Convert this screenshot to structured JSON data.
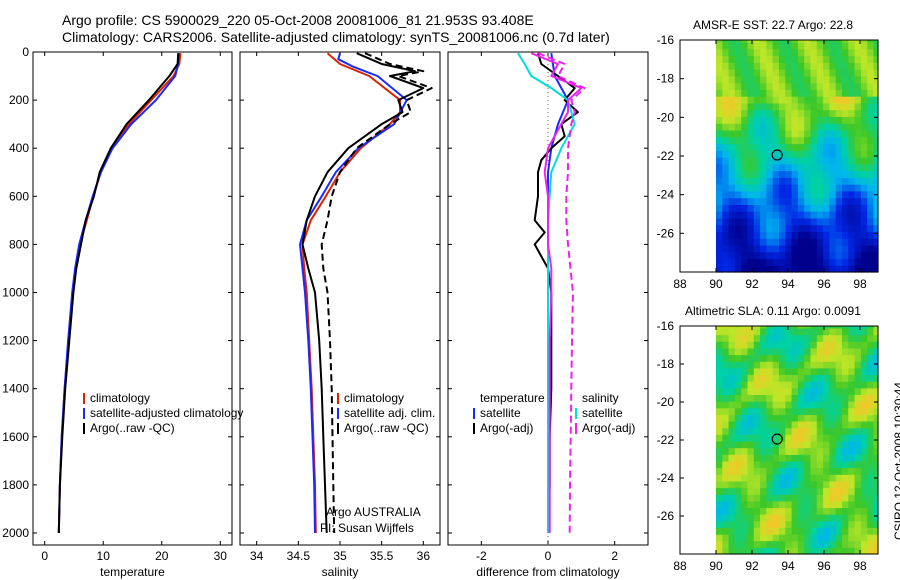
{
  "header": {
    "title_line1": "Argo profile: CS 5900029_220 05-Oct-2008 20081006_81 21.953S 93.408E",
    "title_line2": "Climatology: CARS2006. Satellite-adjusted climatology: synTS_20081006.nc (0.7d later)"
  },
  "timestamp": "CSIRO 12-Oct-2008 10:30:44",
  "colors": {
    "red": "#dd2200",
    "blue": "#1a2aff",
    "black": "#000000",
    "cyan": "#00dddd",
    "magenta": "#ee22ee"
  },
  "chart_data": [
    {
      "id": "temperature",
      "type": "line",
      "xlabel": "temperature",
      "xlim": [
        -2,
        32
      ],
      "ylim": [
        0,
        2050
      ],
      "y_inverted": true,
      "xticks": [
        0,
        10,
        20,
        30
      ],
      "yticks": [
        0,
        200,
        400,
        600,
        800,
        1000,
        1200,
        1400,
        1600,
        1800,
        2000
      ],
      "legend": {
        "position": "lower-right",
        "entries": [
          "climatology",
          "satellite-adjusted climatology",
          "Argo(..raw -QC)"
        ]
      },
      "series": [
        {
          "name": "climatology",
          "color": "red",
          "style": "solid",
          "y": [
            5,
            50,
            100,
            200,
            300,
            400,
            500,
            600,
            700,
            800,
            900,
            1000,
            1200,
            1400,
            1600,
            1800,
            2000
          ],
          "x": [
            23.2,
            23.0,
            22.0,
            18.2,
            14.4,
            11.5,
            9.6,
            8.3,
            7.2,
            6.0,
            5.3,
            4.8,
            4.1,
            3.4,
            2.9,
            2.6,
            2.4
          ]
        },
        {
          "name": "satellite-adjusted climatology",
          "color": "blue",
          "style": "solid",
          "y": [
            5,
            50,
            100,
            200,
            300,
            400,
            500,
            600,
            700,
            800,
            900,
            1000,
            1200,
            1400,
            1600,
            1800,
            2000
          ],
          "x": [
            23.0,
            22.8,
            22.3,
            19.0,
            14.8,
            11.6,
            9.6,
            8.2,
            7.0,
            5.9,
            5.2,
            4.7,
            4.0,
            3.4,
            2.9,
            2.6,
            2.4
          ]
        },
        {
          "name": "Argo(..raw -QC)",
          "color": "black",
          "style": "solid",
          "y": [
            5,
            50,
            100,
            200,
            300,
            400,
            500,
            600,
            700,
            800,
            900,
            1000,
            1200,
            1400,
            1600,
            1800,
            2000
          ],
          "x": [
            22.8,
            22.7,
            21.3,
            17.8,
            14.0,
            11.3,
            9.4,
            8.4,
            7.0,
            6.2,
            5.4,
            4.9,
            4.2,
            3.5,
            3.0,
            2.6,
            2.4
          ]
        }
      ]
    },
    {
      "id": "salinity",
      "type": "line",
      "xlabel": "salinity",
      "xlim": [
        33.8,
        36.2
      ],
      "ylim": [
        0,
        2050
      ],
      "y_inverted": true,
      "xticks": [
        34,
        34.5,
        35,
        35.5,
        36
      ],
      "yticks": [
        0,
        200,
        400,
        600,
        800,
        1000,
        1200,
        1400,
        1600,
        1800,
        2000
      ],
      "legend": {
        "position": "lower-right",
        "entries": [
          "climatology",
          "satellite adj. clim.",
          "Argo(..raw -QC)"
        ]
      },
      "annotations": [
        "Argo AUSTRALIA",
        "PI: Susan Wijffels"
      ],
      "series": [
        {
          "name": "climatology",
          "color": "red",
          "style": "solid",
          "y": [
            5,
            50,
            100,
            200,
            250,
            300,
            400,
            500,
            600,
            700,
            800,
            900,
            1000,
            1200,
            1400,
            1600,
            1800,
            2000
          ],
          "x": [
            34.85,
            35.0,
            35.35,
            35.72,
            35.72,
            35.6,
            35.25,
            35.0,
            34.83,
            34.65,
            34.55,
            34.57,
            34.6,
            34.63,
            34.66,
            34.68,
            34.7,
            34.71
          ]
        },
        {
          "name": "satellite adj. clim.",
          "color": "blue",
          "style": "solid",
          "y": [
            5,
            30,
            60,
            100,
            200,
            300,
            400,
            500,
            600,
            700,
            800,
            900,
            1000,
            1200,
            1400,
            1600,
            1800,
            2000
          ],
          "x": [
            35.0,
            34.98,
            35.15,
            35.45,
            35.8,
            35.65,
            35.22,
            34.95,
            34.78,
            34.6,
            34.52,
            34.55,
            34.58,
            34.62,
            34.65,
            34.67,
            34.69,
            34.7
          ]
        },
        {
          "name": "Argo(..raw -QC)",
          "color": "black",
          "style": "solid",
          "y": [
            5,
            50,
            80,
            100,
            150,
            200,
            250,
            300,
            400,
            500,
            600,
            700,
            800,
            900,
            1000,
            1200,
            1400,
            1600,
            1800,
            2000
          ],
          "x": [
            35.2,
            35.5,
            35.9,
            35.6,
            36.0,
            35.7,
            35.75,
            35.5,
            35.1,
            34.85,
            34.7,
            34.6,
            34.55,
            34.62,
            34.7,
            34.75,
            34.78,
            34.8,
            34.82,
            34.84
          ]
        },
        {
          "name": "Argo(-adj)",
          "color": "black",
          "style": "dashed",
          "y": [
            5,
            50,
            80,
            100,
            150,
            200,
            250,
            300,
            400,
            500,
            600,
            700,
            800,
            900,
            1000,
            1200,
            1400,
            1600,
            1800,
            2000
          ],
          "x": [
            35.3,
            35.6,
            36.0,
            35.7,
            36.1,
            35.8,
            35.85,
            35.6,
            35.2,
            35.0,
            34.9,
            34.85,
            34.78,
            34.8,
            34.85,
            34.88,
            34.9,
            34.91,
            34.92,
            34.93
          ]
        }
      ]
    },
    {
      "id": "difference",
      "type": "line",
      "xlabel": "difference from climatology",
      "xlim": [
        -3,
        3
      ],
      "ylim": [
        0,
        2050
      ],
      "y_inverted": true,
      "xticks": [
        -2,
        0,
        2
      ],
      "yticks": [
        0,
        200,
        400,
        600,
        800,
        1000,
        1200,
        1400,
        1600,
        1800,
        2000
      ],
      "legend": {
        "position": "lower-center",
        "temperature_title": "temperature",
        "temperature_entries": [
          "satellite",
          "Argo(-adj)"
        ],
        "salinity_title": "salinity",
        "salinity_entries": [
          "satellite",
          "Argo(-adj)"
        ]
      },
      "series": [
        {
          "name": "temperature satellite",
          "color": "blue",
          "style": "solid",
          "y": [
            5,
            100,
            200,
            300,
            400,
            500,
            700,
            900,
            1200,
            1600,
            2000
          ],
          "x": [
            0.1,
            0.2,
            0.6,
            0.3,
            0.1,
            0.0,
            0.0,
            0.0,
            0.0,
            0.0,
            0.0
          ]
        },
        {
          "name": "temperature Argo(-adj)",
          "color": "black",
          "style": "solid",
          "y": [
            5,
            50,
            100,
            150,
            200,
            250,
            300,
            350,
            400,
            450,
            500,
            600,
            700,
            750,
            800,
            900,
            1000,
            1200,
            1400,
            1600,
            1800,
            2000
          ],
          "x": [
            -0.3,
            -0.2,
            0.3,
            0.8,
            0.5,
            0.9,
            0.4,
            0.5,
            0.1,
            -0.2,
            -0.3,
            -0.3,
            -0.4,
            -0.1,
            -0.4,
            0.0,
            0.1,
            0.1,
            0.1,
            0.05,
            0.05,
            0.0
          ]
        },
        {
          "name": "salinity satellite",
          "color": "cyan",
          "style": "solid",
          "y": [
            5,
            50,
            100,
            150,
            200,
            300,
            400,
            500,
            700,
            900,
            1200,
            1600,
            2000
          ],
          "x": [
            -0.9,
            -0.7,
            -0.5,
            0.1,
            0.6,
            0.8,
            0.4,
            0.1,
            0.0,
            0.0,
            0.0,
            0.0,
            0.0
          ]
        },
        {
          "name": "salinity Argo(-adj)",
          "color": "magenta",
          "style": "dashed",
          "y": [
            5,
            50,
            100,
            150,
            200,
            250,
            300,
            400,
            500,
            600,
            700,
            800,
            1000,
            1200,
            1400,
            1600,
            1800,
            2000
          ],
          "x": [
            -0.3,
            0.5,
            0.3,
            1.1,
            0.7,
            0.8,
            0.7,
            0.6,
            0.6,
            0.55,
            0.55,
            0.6,
            0.75,
            0.72,
            0.7,
            0.68,
            0.66,
            0.65
          ]
        },
        {
          "name": "salinity Argo(..raw -QC)",
          "color": "magenta",
          "style": "solid",
          "y": [
            5,
            50,
            100,
            150,
            200,
            250,
            300,
            400,
            500,
            600,
            700,
            800,
            900,
            1000,
            1200,
            1600,
            2000
          ],
          "x": [
            -0.5,
            0.3,
            0.1,
            1.0,
            0.6,
            0.6,
            0.4,
            0.0,
            -0.1,
            0.0,
            0.0,
            0.0,
            0.1,
            0.1,
            0.05,
            0.05,
            0.05
          ]
        }
      ]
    },
    {
      "id": "sst_map",
      "type": "heatmap",
      "title": "AMSR-E SST: 22.7 Argo: 22.8",
      "xlim": [
        88,
        99
      ],
      "ylim": [
        -28,
        -16
      ],
      "xticks": [
        88,
        90,
        92,
        94,
        96,
        98
      ],
      "yticks": [
        -16,
        -18,
        -20,
        -22,
        -24,
        -26
      ],
      "data_x_range": [
        90,
        99
      ],
      "data_y_range": [
        -28,
        -16
      ],
      "marker": {
        "lon": 93.4,
        "lat": -21.95
      }
    },
    {
      "id": "sla_map",
      "type": "heatmap",
      "title": "Altimetric SLA: 0.11 Argo: 0.0091",
      "xlim": [
        88,
        99
      ],
      "ylim": [
        -28,
        -16
      ],
      "xticks": [
        88,
        90,
        92,
        94,
        96,
        98
      ],
      "yticks": [
        -16,
        -18,
        -20,
        -22,
        -24,
        -26
      ],
      "data_x_range": [
        90,
        99
      ],
      "data_y_range": [
        -28,
        -16
      ],
      "marker": {
        "lon": 93.4,
        "lat": -21.95
      }
    }
  ]
}
